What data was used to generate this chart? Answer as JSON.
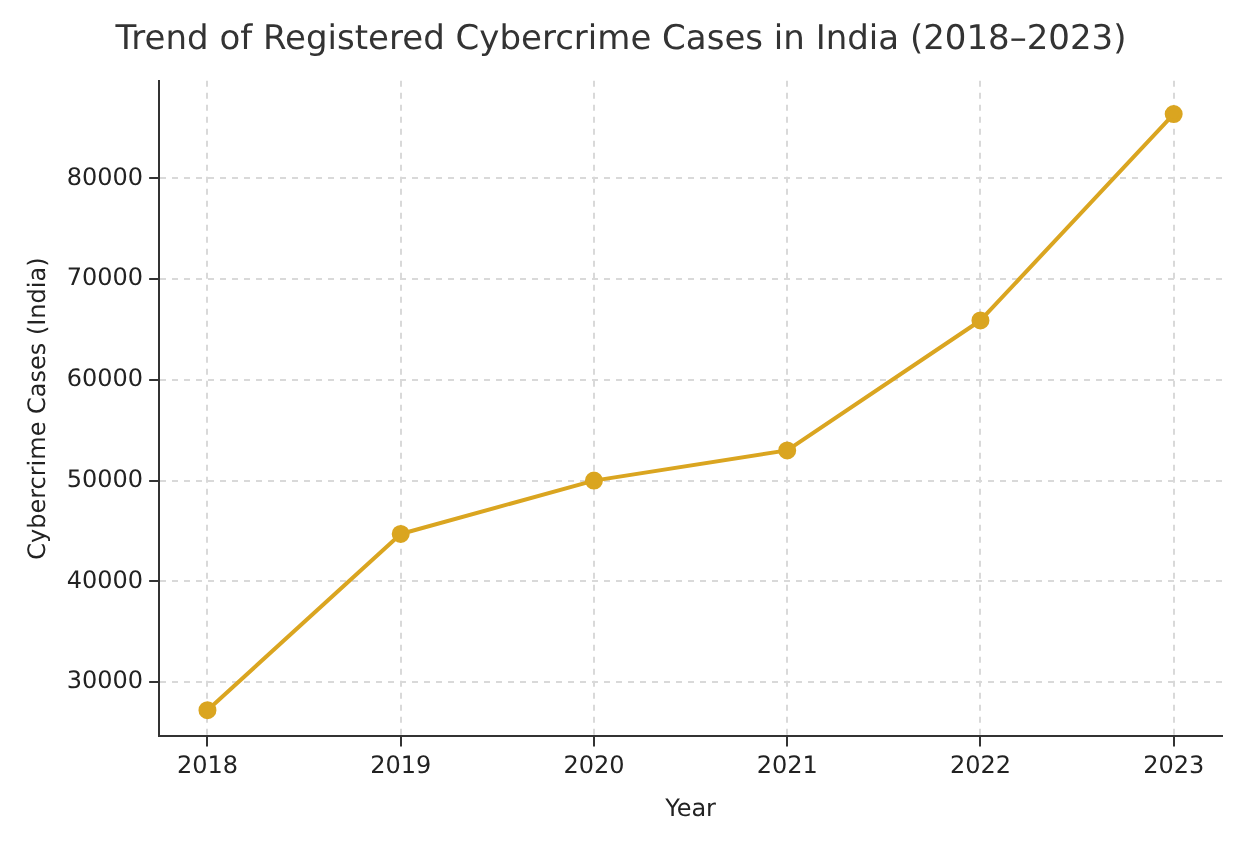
{
  "chart_data": {
    "type": "line",
    "title": "Trend of Registered Cybercrime Cases in India (2018–2023)",
    "xlabel": "Year",
    "ylabel": "Cybercrime Cases (India)",
    "x": [
      2018,
      2019,
      2020,
      2021,
      2022,
      2023
    ],
    "series": [
      {
        "color": "#daa520",
        "values": [
          27200,
          44700,
          50000,
          53000,
          65900,
          86400
        ]
      }
    ],
    "xlim": [
      2017.75,
      2023.25
    ],
    "xticks": [
      2018,
      2019,
      2020,
      2021,
      2022,
      2023
    ],
    "ylim": [
      24600,
      89700
    ],
    "yticks": [
      30000,
      40000,
      50000,
      60000,
      70000,
      80000
    ],
    "grid": true,
    "legend": false,
    "marker": "circle",
    "line_style": "solid"
  }
}
